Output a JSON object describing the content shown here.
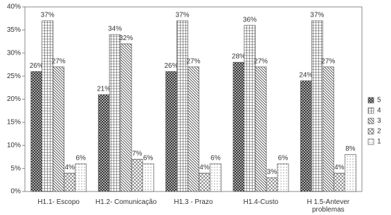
{
  "chart_data": {
    "type": "bar",
    "categories": [
      "H1.1- Escopo",
      "H1.2- Comunicação",
      "H1.3 - Prazo",
      "H1.4-Custo",
      "H 1.5-Antever problemas"
    ],
    "series": [
      {
        "name": "5",
        "color": "#333333",
        "values": [
          26,
          21,
          26,
          28,
          24
        ],
        "value_labels": [
          "26%",
          "21%",
          "26%",
          "28%",
          "24%"
        ]
      },
      {
        "name": "4",
        "color": "#555555",
        "values": [
          37,
          34,
          37,
          36,
          37
        ],
        "value_labels": [
          "37%",
          "34%",
          "37%",
          "36%",
          "37%"
        ]
      },
      {
        "name": "3",
        "color": "#444444",
        "values": [
          27,
          32,
          27,
          27,
          27
        ],
        "value_labels": [
          "27%",
          "32%",
          "27%",
          "27%",
          "27%"
        ]
      },
      {
        "name": "2",
        "color": "#444444",
        "values": [
          4,
          7,
          4,
          3,
          4
        ],
        "value_labels": [
          "4%",
          "7%",
          "4%",
          "3%",
          "4%"
        ]
      },
      {
        "name": "1",
        "color": "#666666",
        "values": [
          6,
          6,
          6,
          6,
          8
        ],
        "value_labels": [
          "6%",
          "6%",
          "6%",
          "6%",
          "8%"
        ]
      }
    ],
    "ylim": [
      0,
      40
    ],
    "yticks": [
      {
        "value": 0,
        "label": "0%"
      },
      {
        "value": 5,
        "label": "5%"
      },
      {
        "value": 10,
        "label": "10%"
      },
      {
        "value": 15,
        "label": "15%"
      },
      {
        "value": 20,
        "label": "20%"
      },
      {
        "value": 25,
        "label": "25%"
      },
      {
        "value": 30,
        "label": "30%"
      },
      {
        "value": 35,
        "label": "35%"
      },
      {
        "value": 40,
        "label": "40%"
      }
    ],
    "legend": "right"
  }
}
